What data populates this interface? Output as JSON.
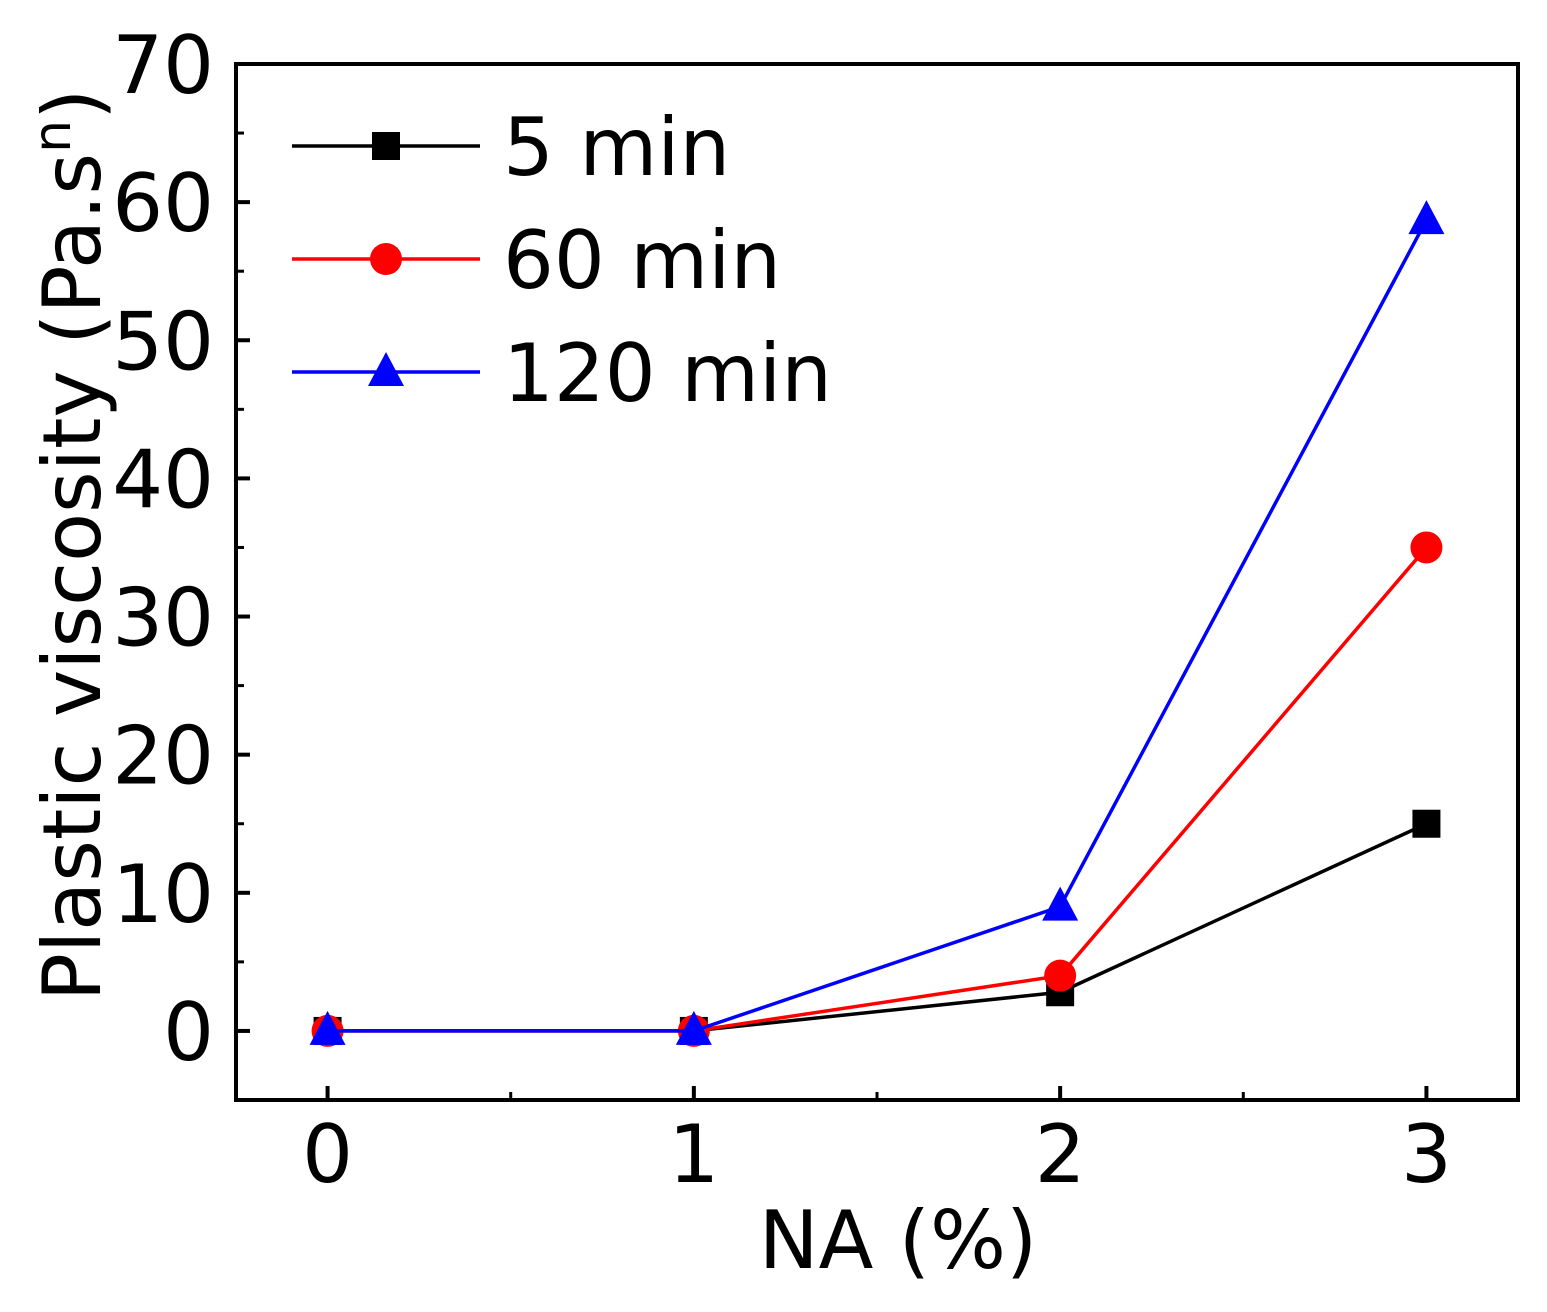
{
  "chart_data": {
    "type": "line",
    "title": "",
    "xlabel": "NA  (%)",
    "ylabel": "Plastic viscosity (Pa.s",
    "ylabel_superscript": "n",
    "ylabel_close": ")",
    "x": [
      0,
      1,
      2,
      3
    ],
    "x_ticks": [
      "0",
      "1",
      "2",
      "3"
    ],
    "xlim": [
      -0.25,
      3.25
    ],
    "ylim": [
      -5,
      70
    ],
    "y_ticks": [
      "0",
      "10",
      "20",
      "30",
      "40",
      "50",
      "60",
      "70"
    ],
    "y_tick_values": [
      0,
      10,
      20,
      30,
      40,
      50,
      60,
      70
    ],
    "grid": false,
    "legend_position": "top-left",
    "series": [
      {
        "name": "5 min",
        "color": "#000000",
        "marker": "square",
        "values": [
          0,
          0,
          2.8,
          15
        ]
      },
      {
        "name": "60 min",
        "color": "#ff0000",
        "marker": "circle",
        "values": [
          0,
          0,
          4,
          35
        ]
      },
      {
        "name": "120 min",
        "color": "#0000ff",
        "marker": "triangle",
        "values": [
          0,
          0,
          9,
          58.7
        ]
      }
    ]
  }
}
